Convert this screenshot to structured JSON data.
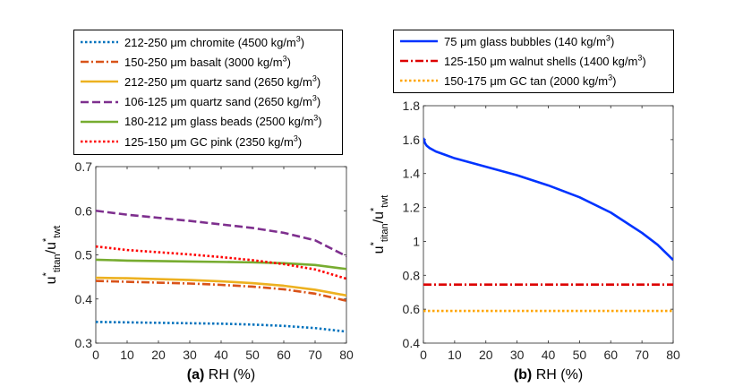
{
  "chart_data": [
    {
      "type": "line",
      "panel_label": "(a)",
      "xlabel": "RH (%)",
      "ylabel": {
        "base1": "u",
        "sup1": "*",
        "sub1": "titan",
        "sep": "/u",
        "sup2": "*",
        "sub2": "twt"
      },
      "xlim": [
        0,
        80
      ],
      "ylim": [
        0.3,
        0.7
      ],
      "xticks": [
        "0",
        "10",
        "20",
        "30",
        "40",
        "50",
        "60",
        "70",
        "80"
      ],
      "yticks": [
        "0.3",
        "0.4",
        "0.5",
        "0.6",
        "0.7"
      ],
      "grid": false,
      "legend_position": "above",
      "series": [
        {
          "name": "212-250 μm chromite (4500 kg/m",
          "unit_sup": "3",
          "name_end": ")",
          "color": "#0072BD",
          "style": "dotted",
          "x": [
            0,
            10,
            20,
            30,
            40,
            50,
            60,
            70,
            80
          ],
          "y": [
            0.348,
            0.347,
            0.346,
            0.345,
            0.344,
            0.342,
            0.339,
            0.334,
            0.326
          ]
        },
        {
          "name": "150-250 μm basalt (3000 kg/m",
          "unit_sup": "3",
          "name_end": ")",
          "color": "#D95319",
          "style": "dashdot",
          "x": [
            0,
            10,
            20,
            30,
            40,
            50,
            60,
            70,
            80
          ],
          "y": [
            0.441,
            0.439,
            0.437,
            0.435,
            0.432,
            0.428,
            0.422,
            0.412,
            0.396
          ]
        },
        {
          "name": "212-250 μm quartz sand (2650 kg/m",
          "unit_sup": "3",
          "name_end": ")",
          "color": "#EDB120",
          "style": "solid",
          "x": [
            0,
            10,
            20,
            30,
            40,
            50,
            60,
            70,
            80
          ],
          "y": [
            0.448,
            0.447,
            0.445,
            0.443,
            0.44,
            0.436,
            0.43,
            0.421,
            0.408
          ]
        },
        {
          "name": "106-125 μm quartz sand (2650 kg/m",
          "unit_sup": "3",
          "name_end": ")",
          "color": "#7E2F8E",
          "style": "dashed",
          "x": [
            0,
            10,
            20,
            30,
            40,
            50,
            60,
            70,
            80
          ],
          "y": [
            0.6,
            0.591,
            0.584,
            0.577,
            0.569,
            0.561,
            0.55,
            0.533,
            0.497
          ]
        },
        {
          "name": "180-212 μm glass beads (2500 kg/m",
          "unit_sup": "3",
          "name_end": ")",
          "color": "#77AC30",
          "style": "solid",
          "x": [
            0,
            10,
            20,
            30,
            40,
            50,
            60,
            70,
            80
          ],
          "y": [
            0.489,
            0.487,
            0.486,
            0.485,
            0.484,
            0.483,
            0.481,
            0.477,
            0.468
          ]
        },
        {
          "name": "125-150 μm GC pink (2350 kg/m",
          "unit_sup": "3",
          "name_end": ")",
          "color": "#FF0000",
          "style": "dotted",
          "x": [
            0,
            10,
            20,
            30,
            40,
            50,
            60,
            70,
            80
          ],
          "y": [
            0.519,
            0.511,
            0.506,
            0.501,
            0.495,
            0.488,
            0.479,
            0.467,
            0.446
          ]
        }
      ]
    },
    {
      "type": "line",
      "panel_label": "(b)",
      "xlabel": "RH (%)",
      "ylabel": {
        "base1": "u",
        "sup1": "*",
        "sub1": "titan",
        "sep": "/u",
        "sup2": "*",
        "sub2": "twt"
      },
      "xlim": [
        0,
        80
      ],
      "ylim": [
        0.4,
        1.8
      ],
      "xticks": [
        "0",
        "10",
        "20",
        "30",
        "40",
        "50",
        "60",
        "70",
        "80"
      ],
      "yticks": [
        "0.4",
        "0.6",
        "0.8",
        "1",
        "1.2",
        "1.4",
        "1.6",
        "1.8"
      ],
      "grid": false,
      "legend_position": "above",
      "series": [
        {
          "name": "75 μm glass bubbles (140 kg/m",
          "unit_sup": "3",
          "name_end": ")",
          "color": "#0033FF",
          "style": "solid",
          "x": [
            0,
            0.5,
            1,
            2,
            4,
            7,
            10,
            20,
            30,
            40,
            50,
            60,
            70,
            75,
            80
          ],
          "y": [
            1.61,
            1.58,
            1.565,
            1.55,
            1.53,
            1.51,
            1.49,
            1.44,
            1.39,
            1.33,
            1.26,
            1.17,
            1.05,
            0.98,
            0.89
          ]
        },
        {
          "name": "125-150 μm walnut shells (1400 kg/m",
          "unit_sup": "3",
          "name_end": ")",
          "color": "#DD0000",
          "style": "dashdot",
          "x": [
            0,
            80
          ],
          "y": [
            0.745,
            0.745
          ]
        },
        {
          "name": "150-175 μm GC tan (2000 kg/m",
          "unit_sup": "3",
          "name_end": ")",
          "color": "#FFA500",
          "style": "dotted",
          "x": [
            0,
            80
          ],
          "y": [
            0.59,
            0.59
          ]
        }
      ]
    }
  ]
}
